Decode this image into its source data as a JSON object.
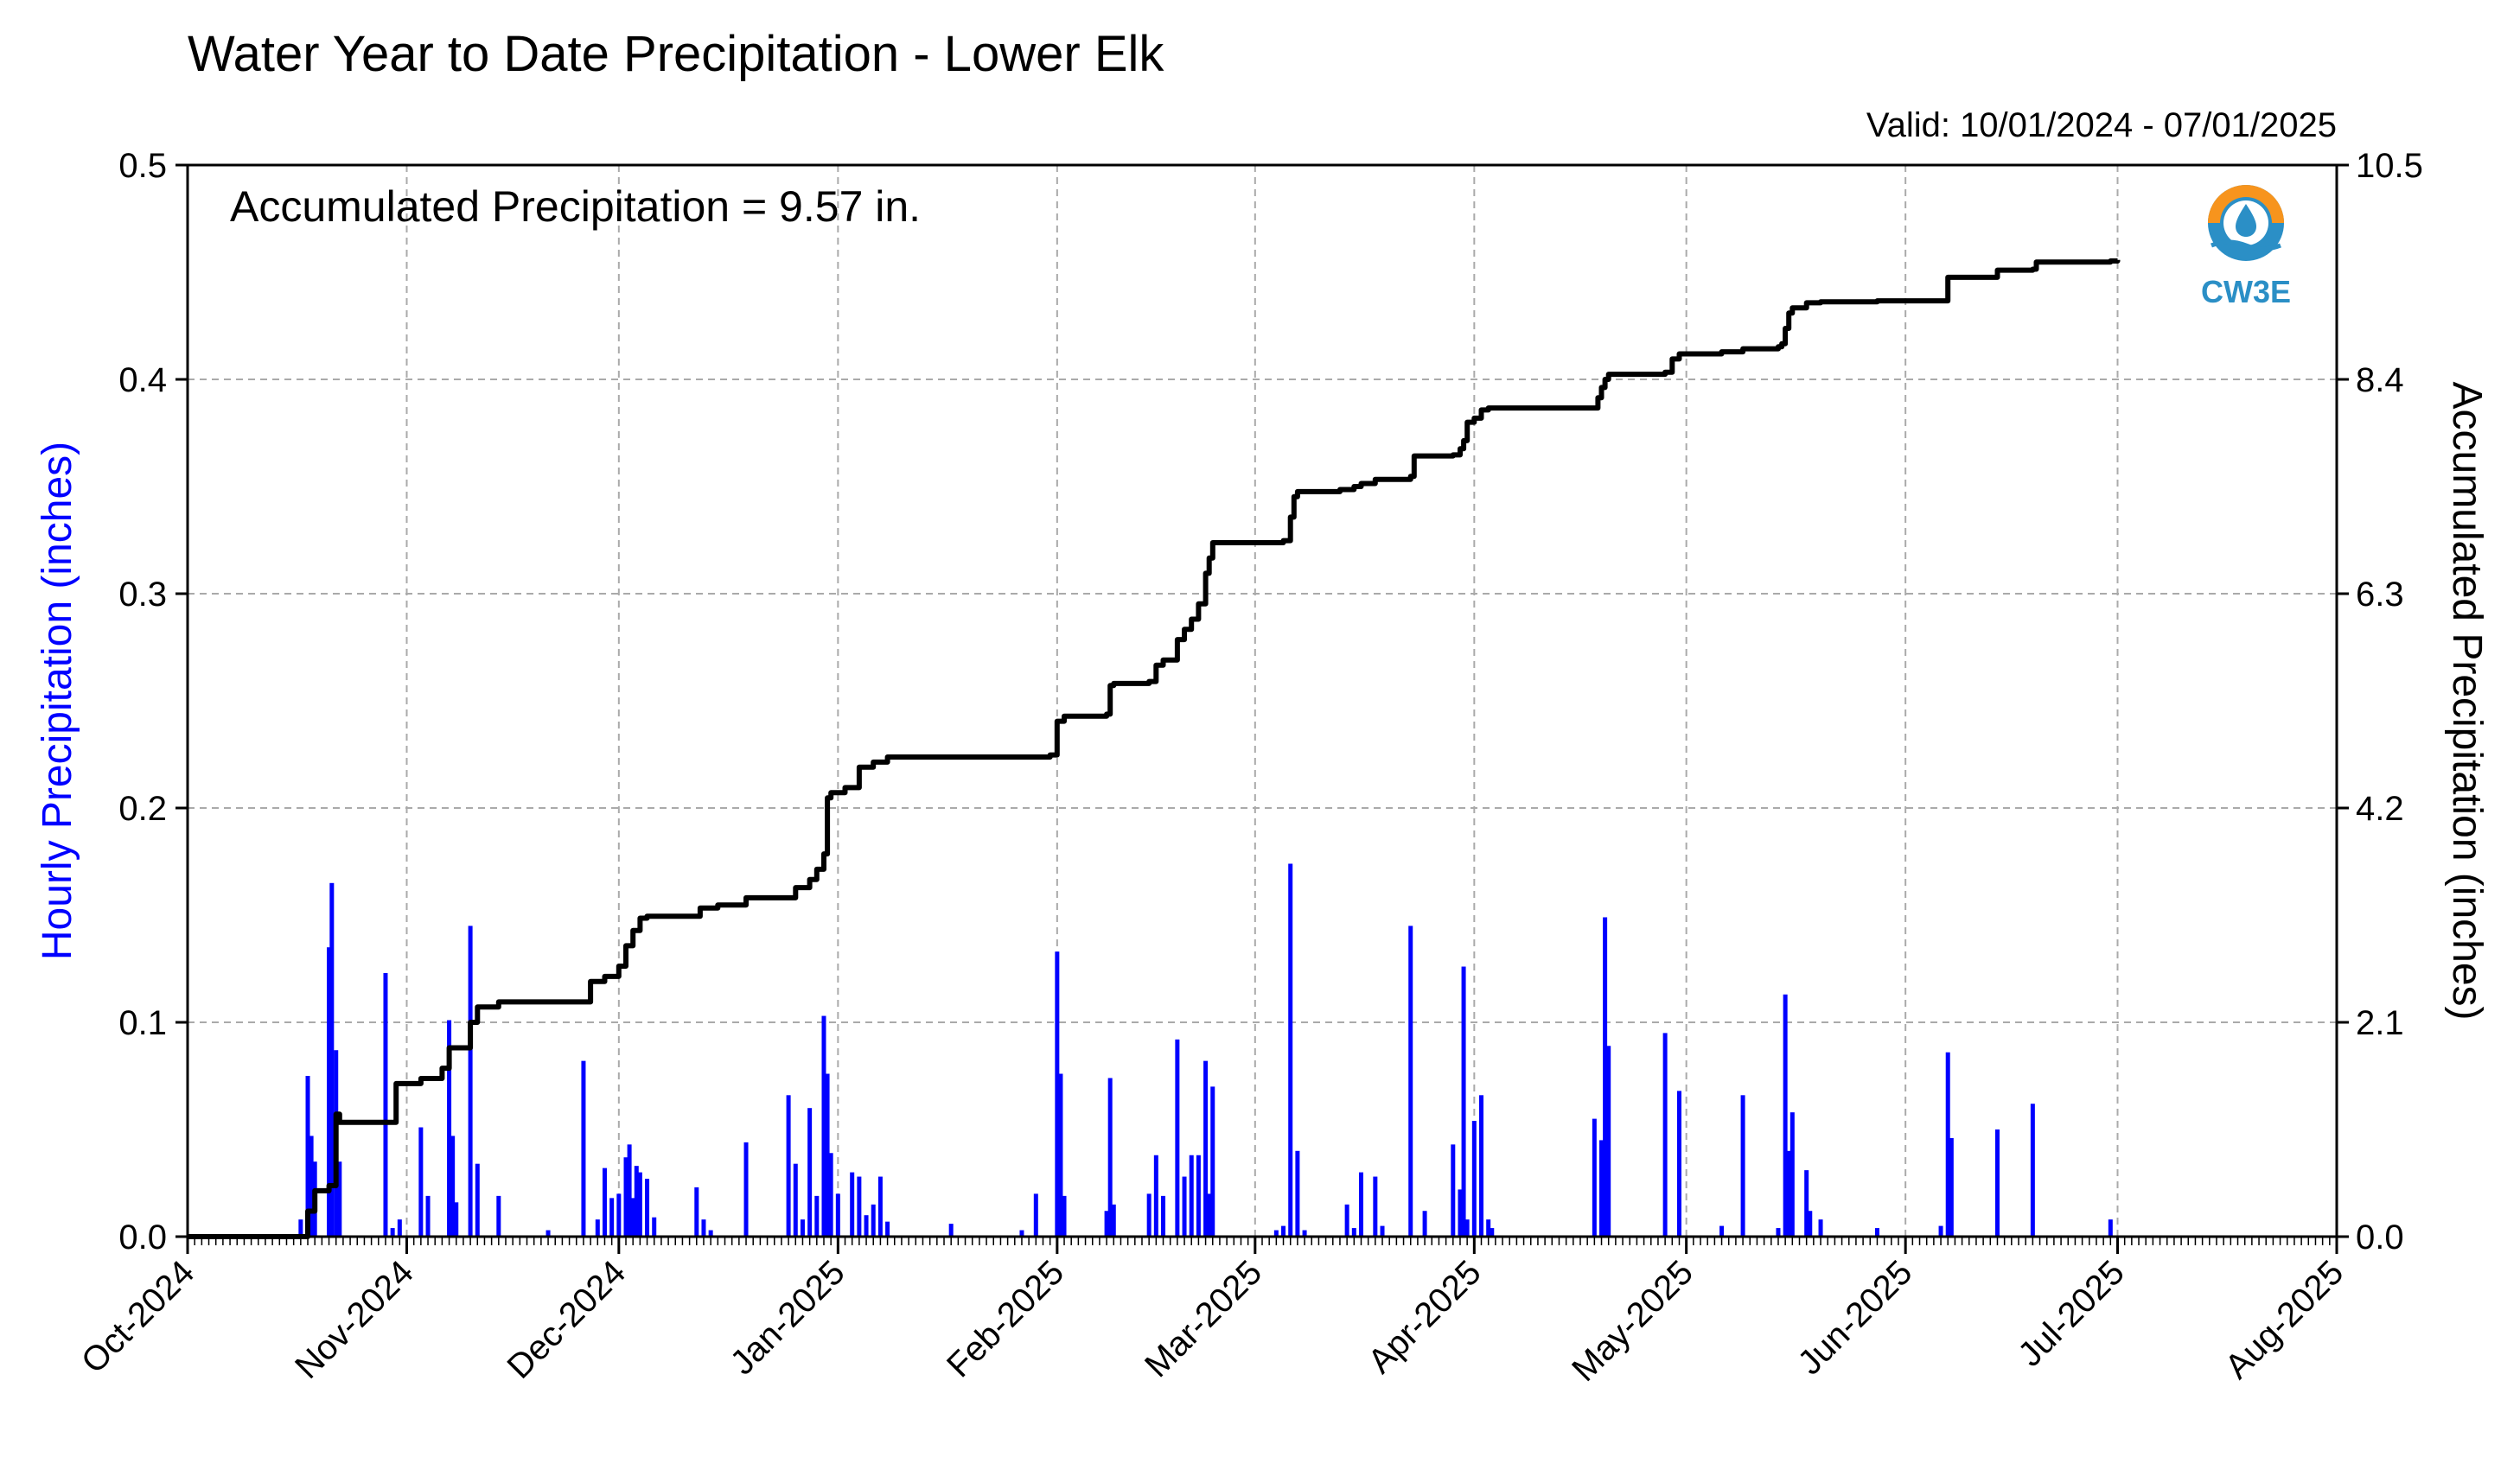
{
  "chart_data": {
    "type": "bar",
    "title": "Water Year to Date Precipitation - Lower Elk",
    "valid_text": "Valid: 10/01/2024 - 07/01/2025",
    "annotation": "Accumulated Precipitation = 9.57 in.",
    "logo_text": "CW3E",
    "ylabel_left": "Hourly Precipitation (inches)",
    "ylabel_right": "Accumulated Precipitation (inches)",
    "ylim_left": [
      0,
      0.5
    ],
    "ylim_right": [
      0,
      10.5
    ],
    "yticks_left": [
      "0.0",
      "0.1",
      "0.2",
      "0.3",
      "0.4",
      "0.5"
    ],
    "yticks_right": [
      "0.0",
      "2.1",
      "4.2",
      "6.3",
      "8.4",
      "10.5"
    ],
    "xlim": [
      "2024-10-01",
      "2025-08-01"
    ],
    "xticks": [
      "Oct-2024",
      "Nov-2024",
      "Dec-2024",
      "Jan-2025",
      "Feb-2025",
      "Mar-2025",
      "Apr-2025",
      "May-2025",
      "Jun-2025",
      "Jul-2025",
      "Aug-2025"
    ],
    "grid": true,
    "colors": {
      "hourly": "#0000ff",
      "accumulated": "#000000",
      "grid": "#aaaaaa",
      "left_label": "#0000ff",
      "logo_ring": "#f7941d",
      "logo_blue": "#2b8fc6"
    },
    "series": [
      {
        "name": "Hourly Precipitation (inches)",
        "type": "bar",
        "points": [
          [
            "2024-10-17",
            0.008
          ],
          [
            "2024-10-18",
            0.075
          ],
          [
            "2024-10-18.5",
            0.047
          ],
          [
            "2024-10-19",
            0.035
          ],
          [
            "2024-10-21",
            0.135
          ],
          [
            "2024-10-21.4",
            0.165
          ],
          [
            "2024-10-22",
            0.087
          ],
          [
            "2024-10-22.5",
            0.035
          ],
          [
            "2024-10-29",
            0.123
          ],
          [
            "2024-10-30",
            0.004
          ],
          [
            "2024-10-31",
            0.008
          ],
          [
            "2024-11-03",
            0.051
          ],
          [
            "2024-11-04",
            0.019
          ],
          [
            "2024-11-07",
            0.101
          ],
          [
            "2024-11-07.5",
            0.047
          ],
          [
            "2024-11-08",
            0.016
          ],
          [
            "2024-11-10",
            0.145
          ],
          [
            "2024-11-11",
            0.034
          ],
          [
            "2024-11-14",
            0.019
          ],
          [
            "2024-11-21",
            0.003
          ],
          [
            "2024-11-26",
            0.082
          ],
          [
            "2024-11-28",
            0.008
          ],
          [
            "2024-11-29",
            0.032
          ],
          [
            "2024-11-30",
            0.018
          ],
          [
            "2024-12-01",
            0.02
          ],
          [
            "2024-12-02",
            0.037
          ],
          [
            "2024-12-02.5",
            0.043
          ],
          [
            "2024-12-03",
            0.018
          ],
          [
            "2024-12-03.5",
            0.033
          ],
          [
            "2024-12-04",
            0.03
          ],
          [
            "2024-12-05",
            0.027
          ],
          [
            "2024-12-06",
            0.009
          ],
          [
            "2024-12-12",
            0.023
          ],
          [
            "2024-12-13",
            0.008
          ],
          [
            "2024-12-14",
            0.003
          ],
          [
            "2024-12-19",
            0.044
          ],
          [
            "2024-12-25",
            0.066
          ],
          [
            "2024-12-26",
            0.034
          ],
          [
            "2024-12-27",
            0.008
          ],
          [
            "2024-12-28",
            0.06
          ],
          [
            "2024-12-29",
            0.019
          ],
          [
            "2024-12-30",
            0.103
          ],
          [
            "2024-12-30.5",
            0.076
          ],
          [
            "2024-12-31",
            0.039
          ],
          [
            "2025-01-01",
            0.02
          ],
          [
            "2025-01-03",
            0.03
          ],
          [
            "2025-01-04",
            0.028
          ],
          [
            "2025-01-05",
            0.01
          ],
          [
            "2025-01-06",
            0.015
          ],
          [
            "2025-01-07",
            0.028
          ],
          [
            "2025-01-08",
            0.007
          ],
          [
            "2025-01-17",
            0.006
          ],
          [
            "2025-01-27",
            0.003
          ],
          [
            "2025-01-29",
            0.02
          ],
          [
            "2025-02-01",
            0.133
          ],
          [
            "2025-02-01.5",
            0.076
          ],
          [
            "2025-02-02",
            0.019
          ],
          [
            "2025-02-08",
            0.012
          ],
          [
            "2025-02-08.5",
            0.074
          ],
          [
            "2025-02-09",
            0.015
          ],
          [
            "2025-02-14",
            0.02
          ],
          [
            "2025-02-15",
            0.038
          ],
          [
            "2025-02-16",
            0.019
          ],
          [
            "2025-02-18",
            0.092
          ],
          [
            "2025-02-19",
            0.028
          ],
          [
            "2025-02-20",
            0.038
          ],
          [
            "2025-02-21",
            0.038
          ],
          [
            "2025-02-22",
            0.082
          ],
          [
            "2025-02-22.5",
            0.02
          ],
          [
            "2025-02-23",
            0.07
          ],
          [
            "2025-03-04",
            0.003
          ],
          [
            "2025-03-05",
            0.005
          ],
          [
            "2025-03-06",
            0.174
          ],
          [
            "2025-03-07",
            0.04
          ],
          [
            "2025-03-08",
            0.003
          ],
          [
            "2025-03-14",
            0.015
          ],
          [
            "2025-03-15",
            0.004
          ],
          [
            "2025-03-16",
            0.03
          ],
          [
            "2025-03-18",
            0.028
          ],
          [
            "2025-03-19",
            0.005
          ],
          [
            "2025-03-23",
            0.145
          ],
          [
            "2025-03-25",
            0.012
          ],
          [
            "2025-03-29",
            0.043
          ],
          [
            "2025-03-30",
            0.022
          ],
          [
            "2025-03-30.5",
            0.126
          ],
          [
            "2025-03-31",
            0.008
          ],
          [
            "2025-04-01",
            0.054
          ],
          [
            "2025-04-02",
            0.066
          ],
          [
            "2025-04-03",
            0.008
          ],
          [
            "2025-04-03.5",
            0.004
          ],
          [
            "2025-04-18",
            0.055
          ],
          [
            "2025-04-19",
            0.045
          ],
          [
            "2025-04-19.5",
            0.149
          ],
          [
            "2025-04-20",
            0.089
          ],
          [
            "2025-04-28",
            0.095
          ],
          [
            "2025-04-30",
            0.068
          ],
          [
            "2025-05-06",
            0.005
          ],
          [
            "2025-05-09",
            0.066
          ],
          [
            "2025-05-14",
            0.004
          ],
          [
            "2025-05-15",
            0.113
          ],
          [
            "2025-05-15.5",
            0.04
          ],
          [
            "2025-05-16",
            0.058
          ],
          [
            "2025-05-18",
            0.031
          ],
          [
            "2025-05-18.5",
            0.012
          ],
          [
            "2025-05-20",
            0.008
          ],
          [
            "2025-05-28",
            0.004
          ],
          [
            "2025-06-06",
            0.005
          ],
          [
            "2025-06-07",
            0.086
          ],
          [
            "2025-06-07.5",
            0.046
          ],
          [
            "2025-06-14",
            0.05
          ],
          [
            "2025-06-19",
            0.062
          ],
          [
            "2025-06-30",
            0.008
          ]
        ]
      },
      {
        "name": "Accumulated Precipitation (inches)",
        "type": "step",
        "points": [
          [
            "2024-10-01",
            0.0
          ],
          [
            "2024-10-16",
            0.0
          ],
          [
            "2024-10-18",
            0.25
          ],
          [
            "2024-10-19",
            0.45
          ],
          [
            "2024-10-21",
            0.5
          ],
          [
            "2024-10-22",
            1.2
          ],
          [
            "2024-10-22.5",
            1.12
          ],
          [
            "2024-10-30",
            1.12
          ],
          [
            "2024-10-30.5",
            1.5
          ],
          [
            "2024-11-03",
            1.55
          ],
          [
            "2024-11-06",
            1.65
          ],
          [
            "2024-11-07",
            1.85
          ],
          [
            "2024-11-09",
            1.85
          ],
          [
            "2024-11-10",
            2.1
          ],
          [
            "2024-11-11",
            2.25
          ],
          [
            "2024-11-14",
            2.3
          ],
          [
            "2024-11-26",
            2.3
          ],
          [
            "2024-11-27",
            2.5
          ],
          [
            "2024-11-29",
            2.55
          ],
          [
            "2024-12-01",
            2.65
          ],
          [
            "2024-12-02",
            2.85
          ],
          [
            "2024-12-03",
            3.0
          ],
          [
            "2024-12-04",
            3.12
          ],
          [
            "2024-12-05",
            3.14
          ],
          [
            "2024-12-12",
            3.14
          ],
          [
            "2024-12-12.5",
            3.22
          ],
          [
            "2024-12-15",
            3.25
          ],
          [
            "2024-12-18",
            3.25
          ],
          [
            "2024-12-19",
            3.32
          ],
          [
            "2024-12-25",
            3.32
          ],
          [
            "2024-12-26",
            3.42
          ],
          [
            "2024-12-28",
            3.5
          ],
          [
            "2024-12-29",
            3.6
          ],
          [
            "2024-12-30",
            3.75
          ],
          [
            "2024-12-30.5",
            4.3
          ],
          [
            "2024-12-31",
            4.35
          ],
          [
            "2025-01-02",
            4.4
          ],
          [
            "2025-01-04",
            4.6
          ],
          [
            "2025-01-06",
            4.65
          ],
          [
            "2025-01-08",
            4.7
          ],
          [
            "2025-01-17",
            4.7
          ],
          [
            "2025-01-31",
            4.72
          ],
          [
            "2025-02-01",
            5.05
          ],
          [
            "2025-02-02",
            5.1
          ],
          [
            "2025-02-08",
            5.12
          ],
          [
            "2025-02-08.5",
            5.4
          ],
          [
            "2025-02-09",
            5.42
          ],
          [
            "2025-02-14",
            5.44
          ],
          [
            "2025-02-15",
            5.6
          ],
          [
            "2025-02-16",
            5.65
          ],
          [
            "2025-02-18",
            5.85
          ],
          [
            "2025-02-19",
            5.95
          ],
          [
            "2025-02-20",
            6.05
          ],
          [
            "2025-02-21",
            6.2
          ],
          [
            "2025-02-22",
            6.5
          ],
          [
            "2025-02-22.5",
            6.65
          ],
          [
            "2025-02-23",
            6.8
          ],
          [
            "2025-02-24",
            6.8
          ],
          [
            "2025-03-05",
            6.82
          ],
          [
            "2025-03-06",
            7.05
          ],
          [
            "2025-03-06.5",
            7.25
          ],
          [
            "2025-03-07",
            7.3
          ],
          [
            "2025-03-13",
            7.32
          ],
          [
            "2025-03-15",
            7.35
          ],
          [
            "2025-03-16",
            7.38
          ],
          [
            "2025-03-18",
            7.42
          ],
          [
            "2025-03-23",
            7.45
          ],
          [
            "2025-03-23.5",
            7.65
          ],
          [
            "2025-03-29",
            7.66
          ],
          [
            "2025-03-30",
            7.72
          ],
          [
            "2025-03-30.5",
            7.8
          ],
          [
            "2025-03-31",
            7.98
          ],
          [
            "2025-04-01",
            8.02
          ],
          [
            "2025-04-02",
            8.1
          ],
          [
            "2025-04-03",
            8.12
          ],
          [
            "2025-04-18",
            8.12
          ],
          [
            "2025-04-18.5",
            8.22
          ],
          [
            "2025-04-19",
            8.32
          ],
          [
            "2025-04-19.5",
            8.4
          ],
          [
            "2025-04-20",
            8.45
          ],
          [
            "2025-04-28",
            8.47
          ],
          [
            "2025-04-29",
            8.6
          ],
          [
            "2025-04-30",
            8.65
          ],
          [
            "2025-05-06",
            8.67
          ],
          [
            "2025-05-09",
            8.7
          ],
          [
            "2025-05-14",
            8.72
          ],
          [
            "2025-05-14.5",
            8.75
          ],
          [
            "2025-05-15",
            8.9
          ],
          [
            "2025-05-15.5",
            9.05
          ],
          [
            "2025-05-16",
            9.1
          ],
          [
            "2025-05-18",
            9.15
          ],
          [
            "2025-05-20",
            9.16
          ],
          [
            "2025-05-28",
            9.17
          ],
          [
            "2025-06-06",
            9.17
          ],
          [
            "2025-06-07",
            9.4
          ],
          [
            "2025-06-13",
            9.4
          ],
          [
            "2025-06-14",
            9.47
          ],
          [
            "2025-06-19",
            9.48
          ],
          [
            "2025-06-19.5",
            9.55
          ],
          [
            "2025-06-30",
            9.56
          ],
          [
            "2025-07-01",
            9.57
          ]
        ]
      }
    ]
  }
}
